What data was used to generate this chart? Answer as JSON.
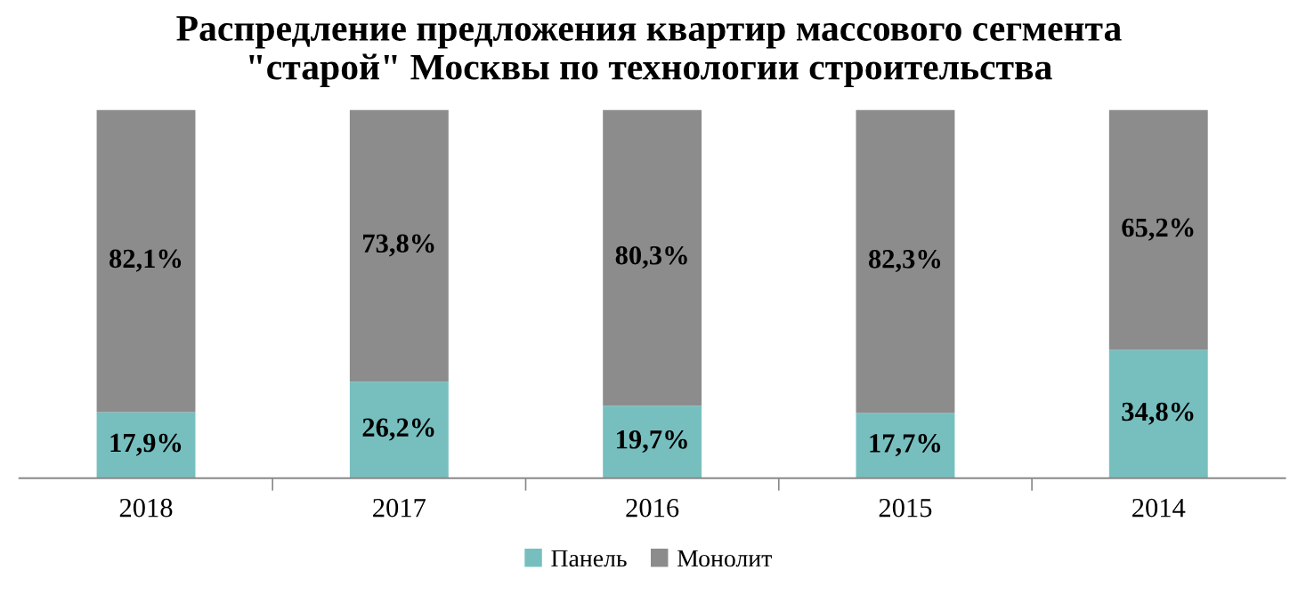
{
  "chart_data": {
    "type": "bar",
    "title": "Распредление предложения квартир массового сегмента\n\"старой\" Москвы по технологии строительства",
    "categories": [
      "2018",
      "2017",
      "2016",
      "2015",
      "2014"
    ],
    "stacked": true,
    "ylim": [
      0,
      100
    ],
    "tick_labels": "x",
    "legend": "bottom",
    "series": [
      {
        "name": "Панель",
        "color": "#77bfbf",
        "values": [
          17.9,
          26.2,
          19.7,
          17.7,
          34.8
        ],
        "value_labels": [
          "17,9%",
          "26,2%",
          "19,7%",
          "17,7%",
          "34,8%"
        ]
      },
      {
        "name": "Монолит",
        "color": "#8c8c8c",
        "values": [
          82.1,
          73.8,
          80.3,
          82.3,
          65.2
        ],
        "value_labels": [
          "82,1%",
          "73,8%",
          "80,3%",
          "82,3%",
          "65,2%"
        ]
      }
    ]
  }
}
